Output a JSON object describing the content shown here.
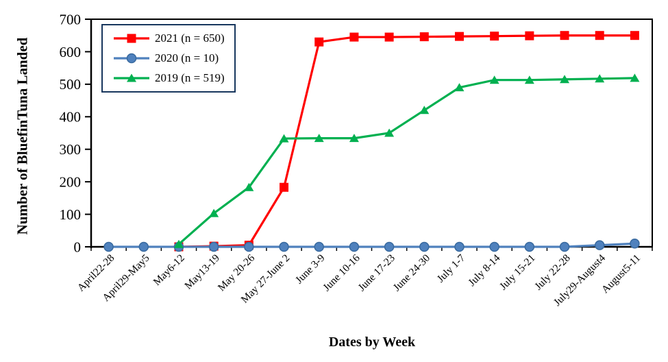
{
  "chart_data": {
    "type": "line",
    "title": "",
    "xlabel": "Dates by Week",
    "ylabel": "Number of BluefinTuna Landed",
    "ylim": [
      0,
      700
    ],
    "ytick_step": 100,
    "grid": false,
    "legend_position": "top-left",
    "axis_color": "#000000",
    "categories": [
      "April22-28",
      "April29-May5",
      "May6-12",
      "May13-19",
      "May 20-26",
      "May 27-June 2",
      "June 3-9",
      "June 10-16",
      "June 17-23",
      "June 24-30",
      "July 1-7",
      "July 8-14",
      "July 15-21",
      "July 22-28",
      "July29-August4",
      "August5-11"
    ],
    "series": [
      {
        "name": "2021 (n = 650)",
        "color": "#FF0000",
        "marker": "square",
        "values": [
          null,
          null,
          0,
          2,
          5,
          183,
          630,
          645,
          645,
          646,
          647,
          648,
          649,
          650,
          650,
          650
        ]
      },
      {
        "name": "2020 (n = 10)",
        "color": "#4F81BD",
        "marker_stroke": "#38699E",
        "marker": "circle",
        "values": [
          0,
          0,
          0,
          0,
          0,
          0,
          0,
          0,
          0,
          0,
          0,
          0,
          0,
          0,
          5,
          10
        ]
      },
      {
        "name": "2019 (n = 519)",
        "color": "#00B050",
        "marker": "triangle",
        "values": [
          null,
          null,
          8,
          103,
          183,
          333,
          334,
          334,
          350,
          420,
          490,
          513,
          513,
          515,
          517,
          519
        ]
      }
    ]
  },
  "legend": {
    "border_color": "#17365D",
    "items": [
      {
        "label": "2021 (n = 650)"
      },
      {
        "label": "2020 (n = 10)"
      },
      {
        "label": "2019 (n = 519)"
      }
    ]
  }
}
